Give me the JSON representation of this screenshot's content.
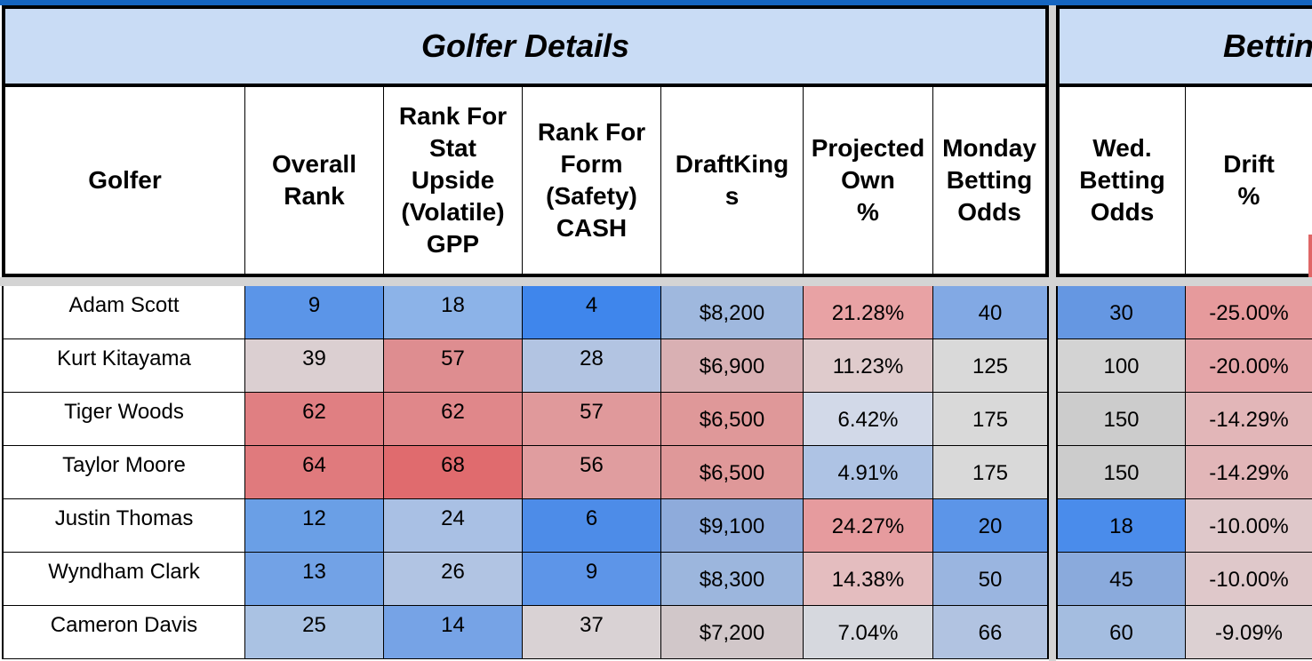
{
  "groups": {
    "golfer_details": "Golfer Details",
    "betting": "Betting"
  },
  "columns": {
    "golfer": "Golfer",
    "overall_rank": "Overall\nRank",
    "rank_stat": "Rank For\nStat\nUpside\n(Volatile)\nGPP",
    "rank_form": "Rank For\nForm\n(Safety)\nCASH",
    "draftkings": "DraftKing\ns",
    "projected_own": "Projected\nOwn\n%",
    "monday_odds": "Monday\nBetting\nOdds",
    "wed_odds": "Wed.\nBetting\nOdds",
    "drift": "Drift\n%"
  },
  "rows": [
    {
      "golfer": "Adam Scott",
      "overall": "9",
      "stat": "18",
      "form": "4",
      "dk": "$8,200",
      "own": "21.28%",
      "mon": "40",
      "wed": "30",
      "drift": "-25.00%",
      "colors": {
        "overall": "#5b95e8",
        "stat": "#8cb3e8",
        "form": "#3f86ec",
        "dk": "#9fb8de",
        "own": "#e8a2a4",
        "mon": "#82a9e4",
        "wed": "#6597e2",
        "drift": "#e69a9c"
      }
    },
    {
      "golfer": "Kurt Kitayama",
      "overall": "39",
      "stat": "57",
      "form": "28",
      "dk": "$6,900",
      "own": "11.23%",
      "mon": "125",
      "wed": "100",
      "drift": "-20.00%",
      "colors": {
        "overall": "#dbcfd1",
        "stat": "#de8d90",
        "form": "#b2c4e2",
        "dk": "#d9b0b3",
        "own": "#dfcbcc",
        "mon": "#d9d9d9",
        "wed": "#d3d3d3",
        "drift": "#e4a5a8"
      }
    },
    {
      "golfer": "Tiger Woods",
      "overall": "62",
      "stat": "62",
      "form": "57",
      "dk": "$6,500",
      "own": "6.42%",
      "mon": "175",
      "wed": "150",
      "drift": "-14.29%",
      "colors": {
        "overall": "#e07f82",
        "stat": "#e0878a",
        "form": "#e0999b",
        "dk": "#df9899",
        "own": "#d2d9e8",
        "mon": "#d9d9d9",
        "wed": "#cccccc",
        "drift": "#e2b6b8"
      }
    },
    {
      "golfer": "Taylor Moore",
      "overall": "64",
      "stat": "68",
      "form": "56",
      "dk": "$6,500",
      "own": "4.91%",
      "mon": "175",
      "wed": "150",
      "drift": "-14.29%",
      "colors": {
        "overall": "#e07a7d",
        "stat": "#e06b6e",
        "form": "#e09d9f",
        "dk": "#df9899",
        "own": "#aec3e4",
        "mon": "#d9d9d9",
        "wed": "#cccccc",
        "drift": "#e2b6b8"
      }
    },
    {
      "golfer": "Justin Thomas",
      "overall": "12",
      "stat": "24",
      "form": "6",
      "dk": "$9,100",
      "own": "24.27%",
      "mon": "20",
      "wed": "18",
      "drift": "-10.00%",
      "colors": {
        "overall": "#6a9fe6",
        "stat": "#a9c0e4",
        "form": "#4d8ce8",
        "dk": "#8eabdb",
        "own": "#e69b9e",
        "mon": "#5c95e8",
        "wed": "#4a8ceb",
        "drift": "#dfc8ca"
      }
    },
    {
      "golfer": "Wyndham Clark",
      "overall": "13",
      "stat": "26",
      "form": "9",
      "dk": "$8,300",
      "own": "14.38%",
      "mon": "50",
      "wed": "45",
      "drift": "-10.00%",
      "colors": {
        "overall": "#72a2e6",
        "stat": "#b1c4e3",
        "form": "#5d95e8",
        "dk": "#9cb6dd",
        "own": "#e4bdbf",
        "mon": "#9ab5e0",
        "wed": "#8aaadc",
        "drift": "#dfc8ca"
      }
    },
    {
      "golfer": "Cameron Davis",
      "overall": "25",
      "stat": "14",
      "form": "37",
      "dk": "$7,200",
      "own": "7.04%",
      "mon": "66",
      "wed": "60",
      "drift": "-9.09%",
      "colors": {
        "overall": "#aac2e3",
        "stat": "#76a3e6",
        "form": "#d9d2d4",
        "dk": "#d1c7c9",
        "own": "#d6d8de",
        "mon": "#b1c3e1",
        "wed": "#a4bde0",
        "drift": "#dcd0d2"
      }
    }
  ]
}
